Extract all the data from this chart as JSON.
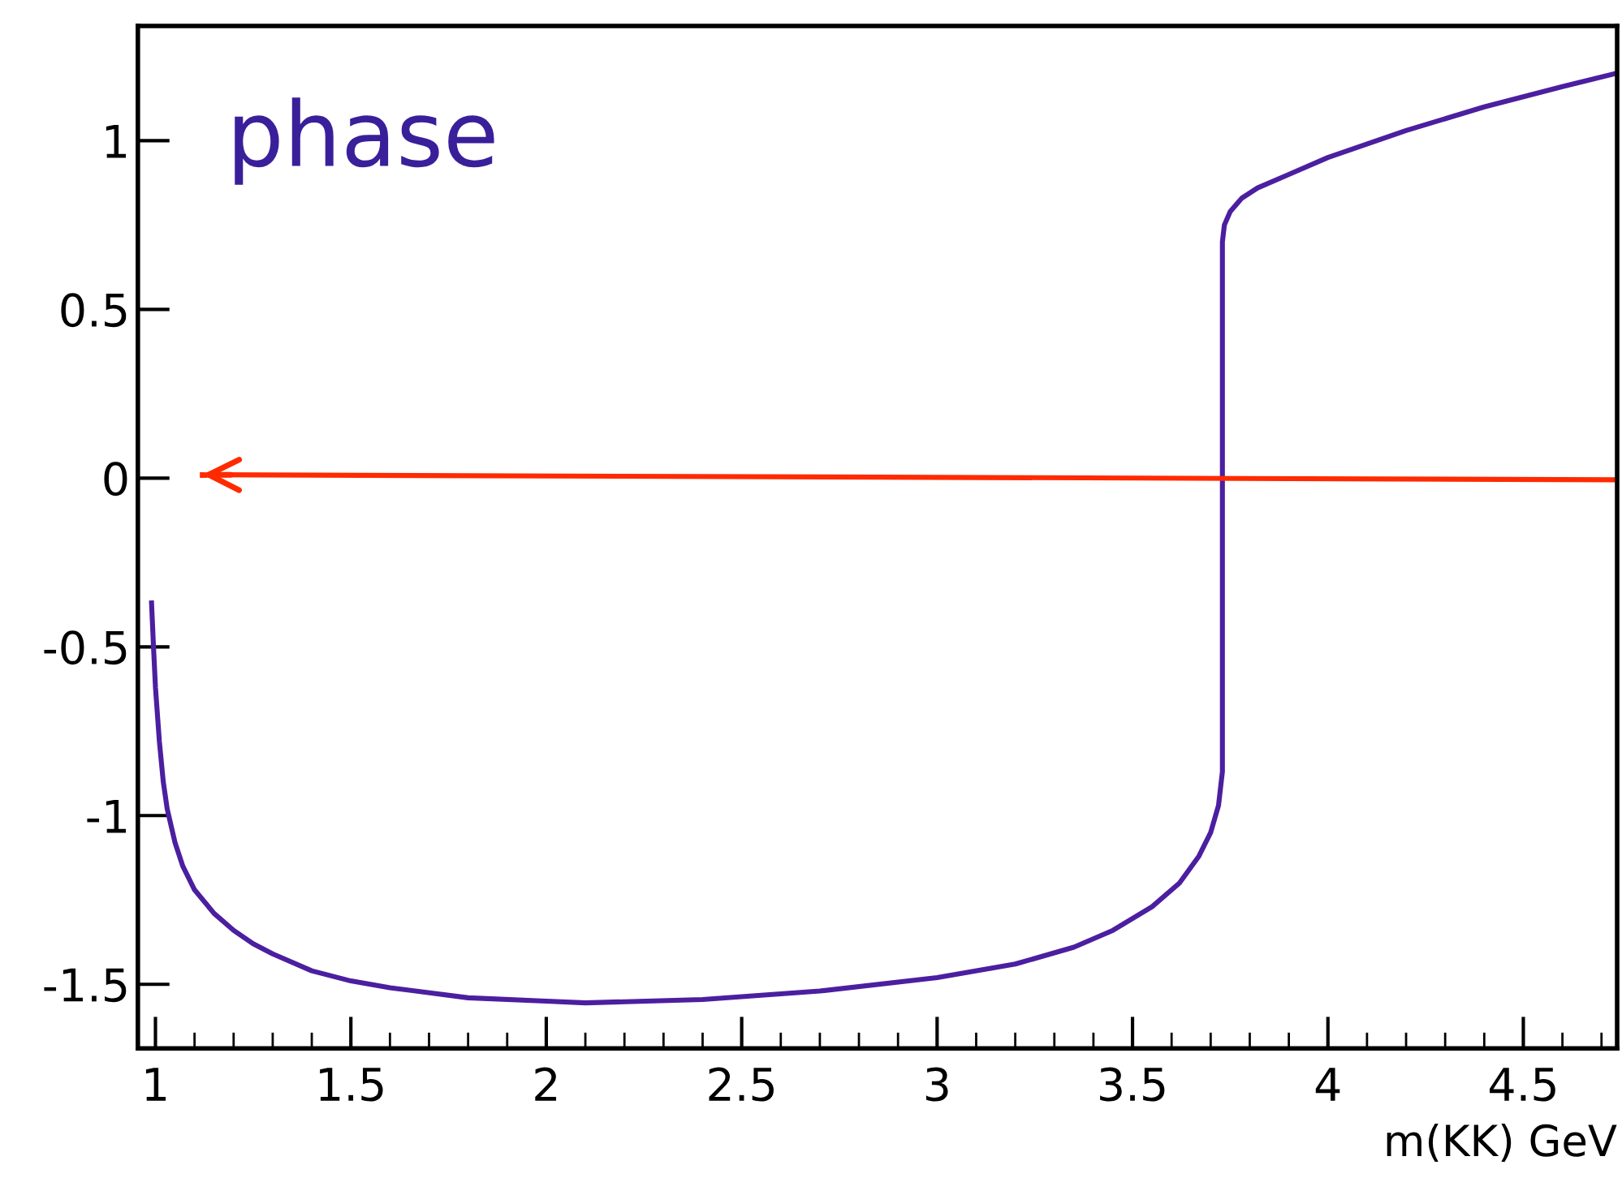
{
  "chart_data": {
    "type": "line",
    "xlabel": "m(KK) GeV",
    "annotations": [
      "phase"
    ],
    "xlim": [
      0.955,
      4.74
    ],
    "ylim": [
      -1.69,
      1.34
    ],
    "xticks": [
      1,
      1.5,
      2,
      2.5,
      3,
      3.5,
      4,
      4.5
    ],
    "yticks": [
      -1.5,
      -1,
      -0.5,
      0,
      0.5,
      1
    ],
    "grid": false,
    "legend": false,
    "marker": "none",
    "line_style": "solid",
    "series": [
      {
        "color": "#4b1fa0",
        "x": [
          0.99,
          0.995,
          1.0,
          1.01,
          1.02,
          1.03,
          1.05,
          1.07,
          1.1,
          1.15,
          1.2,
          1.25,
          1.3,
          1.4,
          1.5,
          1.6,
          1.8,
          2.0,
          2.1,
          2.4,
          2.7,
          3.0,
          3.2,
          3.35,
          3.45,
          3.55,
          3.62,
          3.67,
          3.7,
          3.72,
          3.73,
          3.73,
          3.735,
          3.75,
          3.78,
          3.82,
          3.9,
          4.0,
          4.2,
          4.4,
          4.6,
          4.74
        ],
        "values": [
          -0.37,
          -0.5,
          -0.62,
          -0.78,
          -0.9,
          -0.98,
          -1.08,
          -1.15,
          -1.22,
          -1.29,
          -1.34,
          -1.38,
          -1.41,
          -1.46,
          -1.49,
          -1.51,
          -1.54,
          -1.55,
          -1.555,
          -1.545,
          -1.52,
          -1.48,
          -1.44,
          -1.39,
          -1.34,
          -1.27,
          -1.2,
          -1.12,
          -1.05,
          -0.97,
          -0.87,
          0.7,
          0.75,
          0.79,
          0.83,
          0.86,
          0.9,
          0.95,
          1.03,
          1.1,
          1.16,
          1.2
        ]
      },
      {
        "color": "#ff2a00",
        "x": [
          4.74,
          1.12
        ],
        "values": [
          -0.005,
          0.01
        ]
      }
    ]
  }
}
